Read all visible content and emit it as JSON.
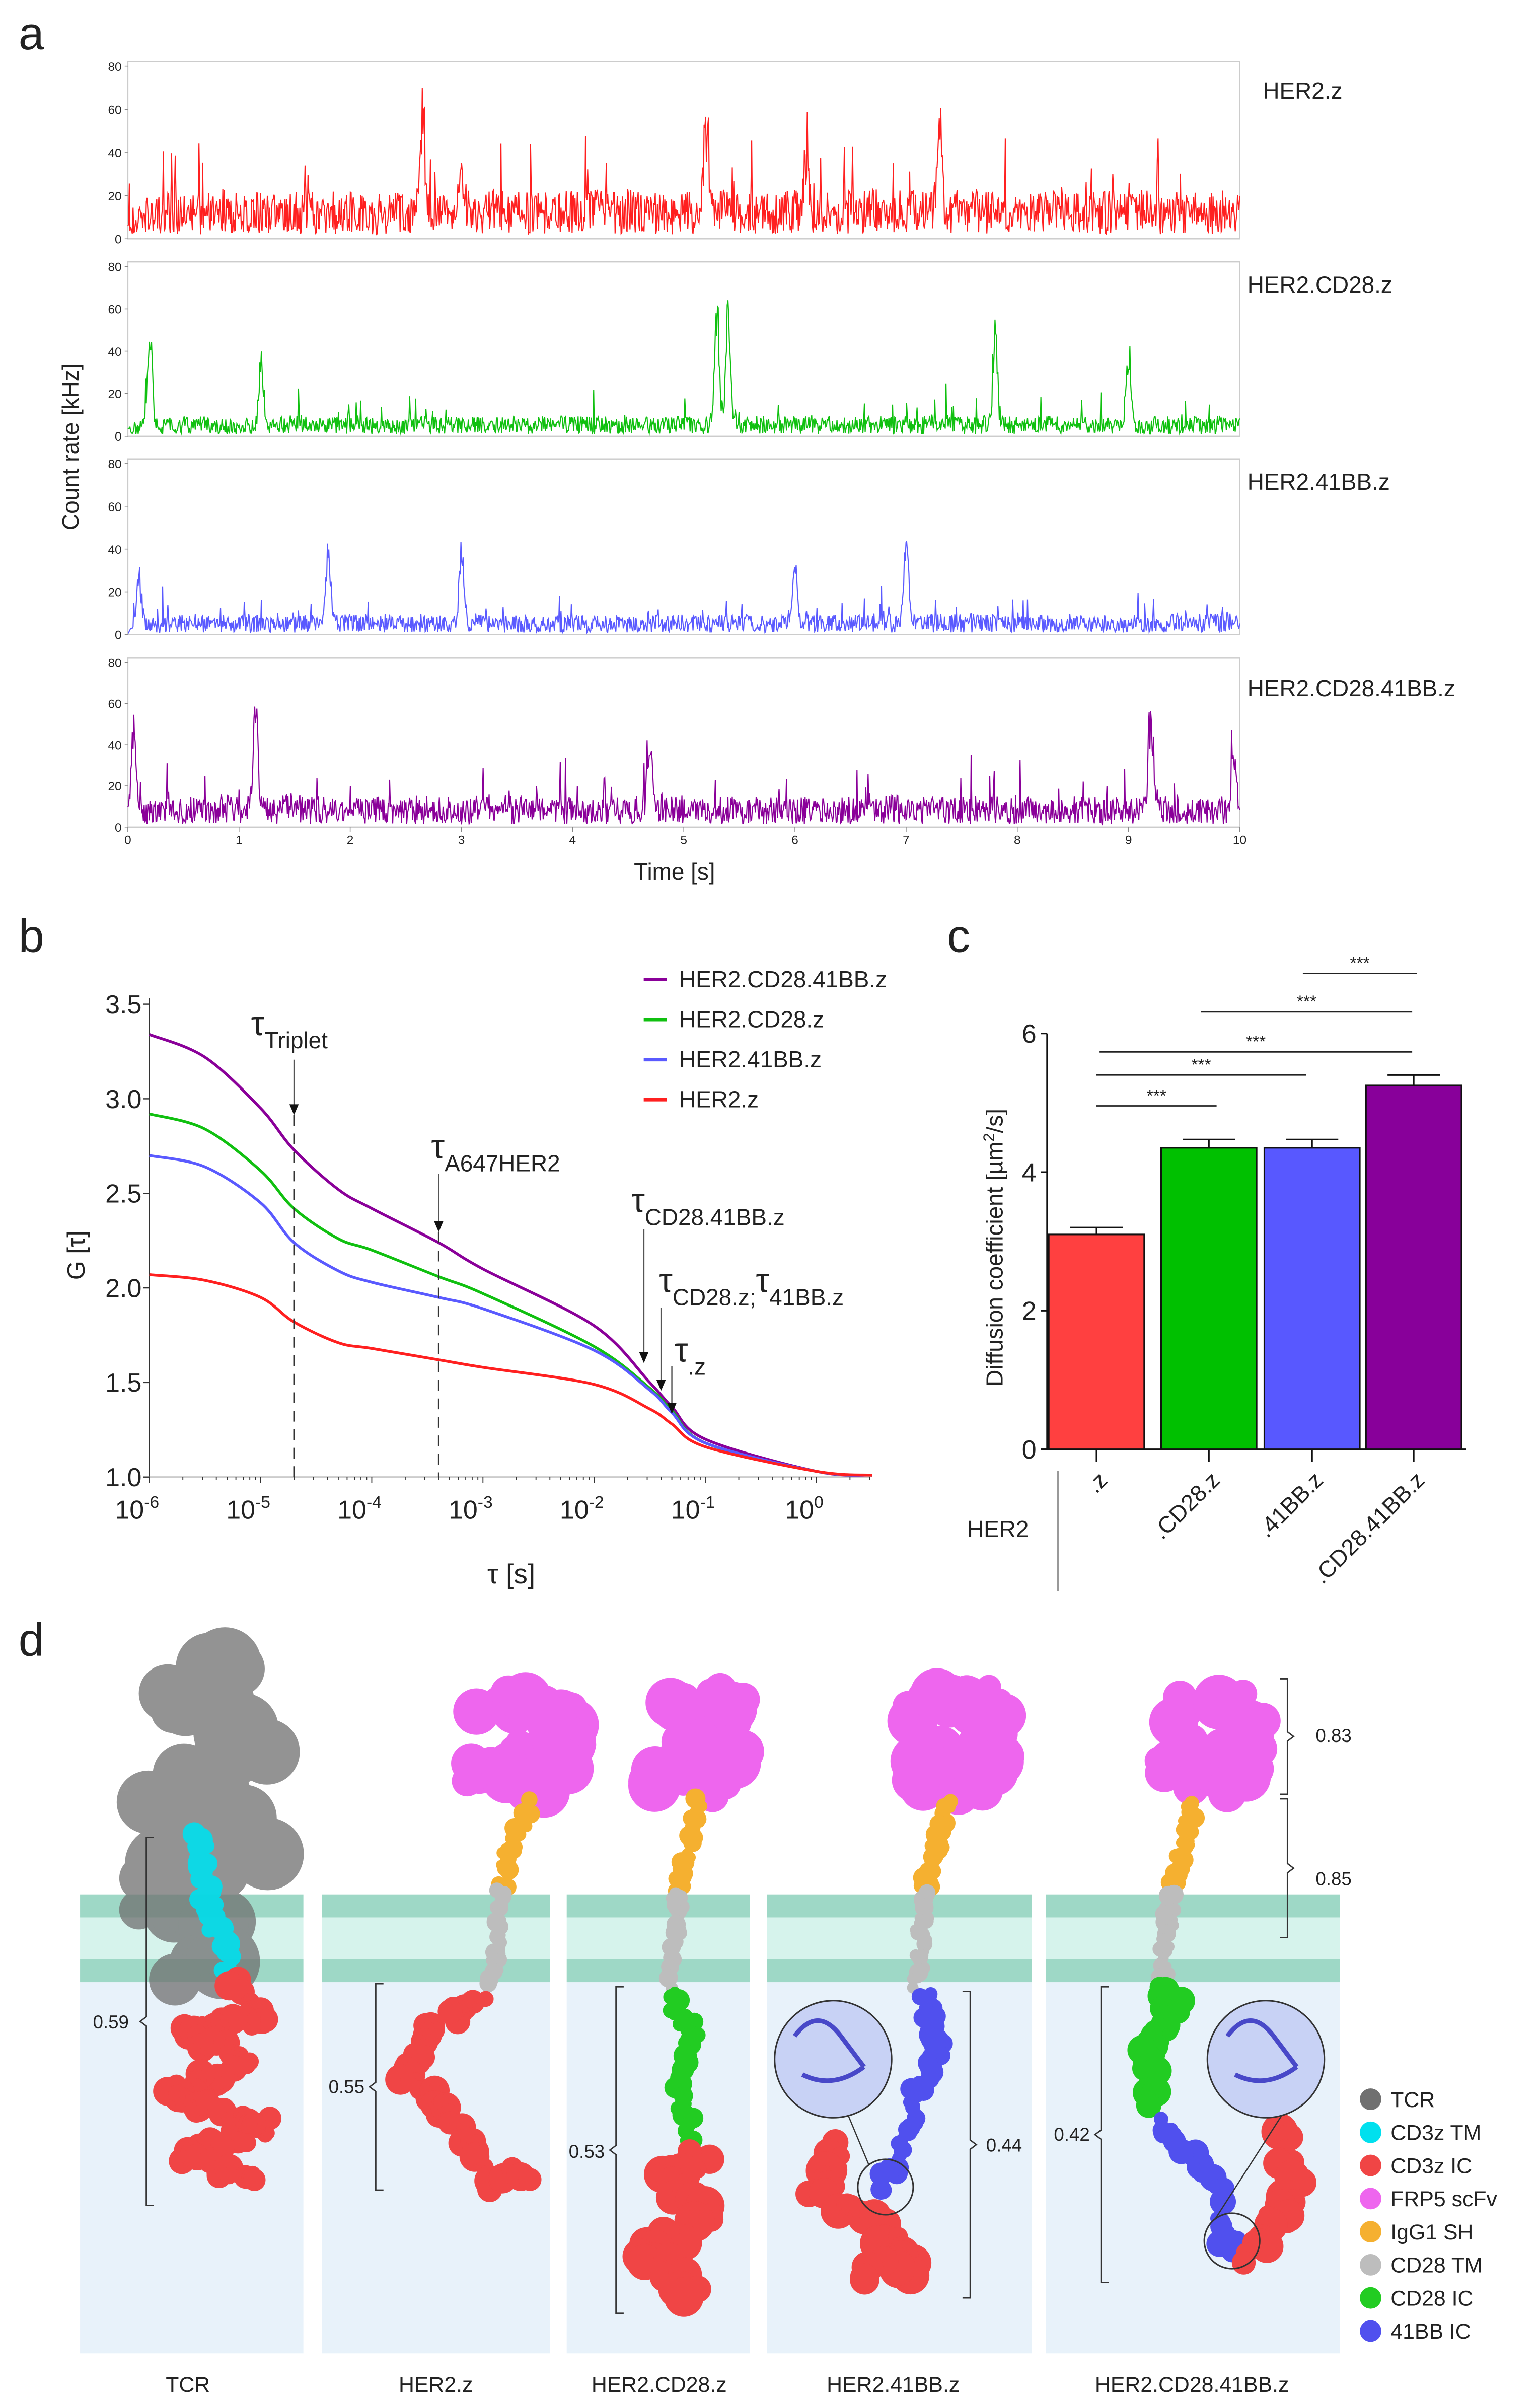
{
  "panel_letters": {
    "a": "a",
    "b": "b",
    "c": "c",
    "d": "d"
  },
  "colors": {
    "red": "#ff2020",
    "green": "#10c010",
    "blue": "#5a5aff",
    "purple": "#8a0099"
  },
  "chart_data": [
    {
      "panel": "a",
      "type": "line",
      "title": "",
      "xlabel": "Time [s]",
      "ylabel": "Count rate [kHz]",
      "xlim": [
        0,
        10
      ],
      "ylim": [
        0,
        80
      ],
      "xticks": [
        "0",
        "1",
        "2",
        "3",
        "4",
        "5",
        "6",
        "7",
        "8",
        "9",
        "10"
      ],
      "yticks": [
        "80",
        "60",
        "40",
        "20",
        "0"
      ],
      "series": [
        {
          "name": "HER2.z",
          "color": "#ff2020",
          "baseline_kHz": 12,
          "peaks": [
            {
              "t": 2.65,
              "v": 75
            },
            {
              "t": 5.2,
              "v": 65
            },
            {
              "t": 7.3,
              "v": 53
            },
            {
              "t": 3.0,
              "v": 40
            },
            {
              "t": 6.1,
              "v": 40
            }
          ]
        },
        {
          "name": "HER2.CD28.z",
          "color": "#10c010",
          "baseline_kHz": 5,
          "peaks": [
            {
              "t": 5.3,
              "v": 70
            },
            {
              "t": 5.4,
              "v": 68
            },
            {
              "t": 0.2,
              "v": 55
            },
            {
              "t": 7.8,
              "v": 55
            },
            {
              "t": 1.2,
              "v": 40
            },
            {
              "t": 9.0,
              "v": 45
            }
          ]
        },
        {
          "name": "HER2.41BB.z",
          "color": "#5a5aff",
          "baseline_kHz": 5,
          "peaks": [
            {
              "t": 7.0,
              "v": 53
            },
            {
              "t": 1.8,
              "v": 48
            },
            {
              "t": 3.0,
              "v": 45
            },
            {
              "t": 6.0,
              "v": 40
            },
            {
              "t": 0.1,
              "v": 35
            }
          ]
        },
        {
          "name": "HER2.CD28.41BB.z",
          "color": "#8a0099",
          "baseline_kHz": 8,
          "peaks": [
            {
              "t": 1.15,
              "v": 65
            },
            {
              "t": 9.2,
              "v": 60
            },
            {
              "t": 0.05,
              "v": 55
            },
            {
              "t": 4.7,
              "v": 45
            },
            {
              "t": 9.95,
              "v": 40
            }
          ]
        }
      ]
    },
    {
      "panel": "b",
      "type": "line",
      "title": "",
      "xlabel": "τ [s]",
      "ylabel": "G [τ]",
      "xscale": "log",
      "xlim_log10": [
        -6,
        0.5
      ],
      "ylim": [
        1.0,
        3.5
      ],
      "xticks": [
        {
          "base": "10",
          "exp": "-6"
        },
        {
          "base": "10",
          "exp": "-5"
        },
        {
          "base": "10",
          "exp": "-4"
        },
        {
          "base": "10",
          "exp": "-3"
        },
        {
          "base": "10",
          "exp": "-2"
        },
        {
          "base": "10",
          "exp": "-1"
        },
        {
          "base": "10",
          "exp": "0"
        }
      ],
      "yticks": [
        "3.5",
        "3.0",
        "2.5",
        "2.0",
        "1.5",
        "1.0"
      ],
      "legend_position": "top-right",
      "log10_tau": [
        -6,
        -5.5,
        -5,
        -4.7,
        -4.3,
        -4,
        -3.4,
        -3,
        -2,
        -1.5,
        -1.3,
        -1,
        0,
        0.5
      ],
      "series": [
        {
          "name": "HER2.CD28.41BB.z",
          "color": "#8a0099",
          "values": [
            3.34,
            3.22,
            2.95,
            2.73,
            2.52,
            2.42,
            2.24,
            2.1,
            1.8,
            1.5,
            1.37,
            1.2,
            1.03,
            1.01
          ]
        },
        {
          "name": "HER2.CD28.z",
          "color": "#10c010",
          "values": [
            2.92,
            2.84,
            2.62,
            2.42,
            2.26,
            2.2,
            2.06,
            1.97,
            1.69,
            1.47,
            1.35,
            1.18,
            1.03,
            1.01
          ]
        },
        {
          "name": "HER2.41BB.z",
          "color": "#5a5aff",
          "values": [
            2.7,
            2.64,
            2.45,
            2.24,
            2.09,
            2.03,
            1.95,
            1.89,
            1.67,
            1.46,
            1.34,
            1.18,
            1.03,
            1.01
          ]
        },
        {
          "name": "HER2.z",
          "color": "#ff2020",
          "values": [
            2.07,
            2.04,
            1.95,
            1.82,
            1.71,
            1.68,
            1.62,
            1.58,
            1.49,
            1.36,
            1.28,
            1.16,
            1.03,
            1.01
          ]
        }
      ],
      "annotations": [
        {
          "id": "triplet",
          "tau_s": 2e-05,
          "dashed": true,
          "parts": [
            {
              "t": "τ",
              "sub": false
            },
            {
              "t": "Triplet",
              "sub": true
            }
          ]
        },
        {
          "id": "a647her2",
          "tau_s": 0.0004,
          "dashed": true,
          "parts": [
            {
              "t": "τ",
              "sub": false
            },
            {
              "t": "A647HER2",
              "sub": true
            }
          ]
        },
        {
          "id": "cd28-41bb-z",
          "tau_s": 0.028,
          "dashed": false,
          "parts": [
            {
              "t": "τ",
              "sub": false
            },
            {
              "t": "CD28.41BB.z",
              "sub": true
            }
          ]
        },
        {
          "id": "cd28z-41bbz",
          "tau_s": 0.04,
          "dashed": false,
          "parts": [
            {
              "t": "τ",
              "sub": false
            },
            {
              "t": "CD28.z;",
              "sub": true
            },
            {
              "t": "τ",
              "sub": false
            },
            {
              "t": "41BB.z",
              "sub": true
            }
          ]
        },
        {
          "id": "z",
          "tau_s": 0.05,
          "dashed": false,
          "parts": [
            {
              "t": "τ",
              "sub": false
            },
            {
              "t": ".z",
              "sub": true
            }
          ]
        }
      ]
    },
    {
      "panel": "c",
      "type": "bar",
      "title": "",
      "xlabel": "HER2",
      "ylabel_parts": [
        {
          "t": "Diffusion coefficient [µm",
          "sup": false
        },
        {
          "t": "2",
          "sup": true
        },
        {
          "t": "/s]",
          "sup": false
        }
      ],
      "ylim": [
        0,
        6
      ],
      "yticks": [
        "0",
        "2",
        "4",
        "6"
      ],
      "categories": [
        ".z",
        ".CD28.z",
        ".41BB.z",
        ".CD28.41BB.z"
      ],
      "values": [
        3.1,
        4.35,
        4.35,
        5.25
      ],
      "errors": [
        0.1,
        0.12,
        0.12,
        0.15
      ],
      "colors": [
        "#ff4040",
        "#00c000",
        "#5858ff",
        "#88009a"
      ],
      "significance": [
        {
          "from": 0,
          "to": 1,
          "label": "***"
        },
        {
          "from": 0,
          "to": 2,
          "label": "***"
        },
        {
          "from": 0,
          "to": 3,
          "label": "***"
        },
        {
          "from": 1,
          "to": 3,
          "label": "***"
        },
        {
          "from": 2,
          "to": 3,
          "label": "***"
        }
      ]
    }
  ],
  "panel_d": {
    "constructs": [
      "TCR",
      "HER2.z",
      "HER2.CD28.z",
      "HER2.41BB.z",
      "HER2.CD28.41BB.z"
    ],
    "distances": {
      "tcr": "0.59",
      "her2_z": "0.55",
      "her2_cd28_z": "0.53",
      "her2_41bb_z": "0.44",
      "her2_cd28_41bb_z": "0.42",
      "scfv": "0.83",
      "hinge": "0.85"
    },
    "legend": [
      {
        "label": "TCR",
        "color": "#707070"
      },
      {
        "label": "CD3z TM",
        "color": "#00e0ee"
      },
      {
        "label": "CD3z IC",
        "color": "#f04545"
      },
      {
        "label": "FRP5 scFv",
        "color": "#ee66ee"
      },
      {
        "label": "IgG1 SH",
        "color": "#f5b030"
      },
      {
        "label": "CD28 TM",
        "color": "#bdbdbd"
      },
      {
        "label": "CD28 IC",
        "color": "#22cc22"
      },
      {
        "label": "41BB IC",
        "color": "#5050ee"
      }
    ]
  }
}
